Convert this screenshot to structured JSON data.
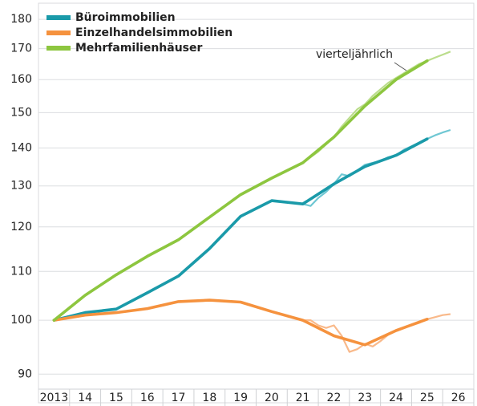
{
  "chart_data": {
    "type": "line",
    "log_scale": true,
    "grid": true,
    "legend": "upper left",
    "annotation": "vierteljährlich",
    "x": [
      2013,
      2014,
      2015,
      2016,
      2017,
      2018,
      2019,
      2020,
      2021,
      2022,
      2023,
      2024,
      2025
    ],
    "xlim": [
      2012.5,
      2026.5
    ],
    "xticks": [
      {
        "value": 2013,
        "label": "2013"
      },
      {
        "value": 2014,
        "label": "14"
      },
      {
        "value": 2015,
        "label": "15"
      },
      {
        "value": 2016,
        "label": "16"
      },
      {
        "value": 2017,
        "label": "17"
      },
      {
        "value": 2018,
        "label": "18"
      },
      {
        "value": 2019,
        "label": "19"
      },
      {
        "value": 2020,
        "label": "20"
      },
      {
        "value": 2021,
        "label": "21"
      },
      {
        "value": 2022,
        "label": "22"
      },
      {
        "value": 2023,
        "label": "23"
      },
      {
        "value": 2024,
        "label": "24"
      },
      {
        "value": 2025,
        "label": "25"
      },
      {
        "value": 2026,
        "label": "26"
      }
    ],
    "ylim": [
      87.4,
      184.6
    ],
    "yticks": [
      90,
      100,
      110,
      120,
      130,
      140,
      150,
      160,
      170,
      180
    ],
    "series": [
      {
        "name": "Büroimmobilien",
        "color": "#1a9aa9",
        "values": [
          100,
          101.5,
          102.2,
          105.5,
          109,
          115,
          122.5,
          126.3,
          125.5,
          130.5,
          135,
          138,
          142.5
        ]
      },
      {
        "name": "Einzelhandelsimmobilien",
        "color": "#f5923e",
        "values": [
          100,
          101,
          101.5,
          102.3,
          103.7,
          104,
          103.6,
          101.7,
          100,
          97,
          95.3,
          98,
          100.2
        ]
      },
      {
        "name": "Mehrfamilienhäuser",
        "color": "#8dc63f",
        "values": [
          100,
          105,
          109.3,
          113.3,
          117,
          122.3,
          127.8,
          132,
          136,
          143,
          152,
          160,
          166
        ]
      }
    ],
    "quarterly": [
      {
        "color": "#6fc7d3",
        "x": [
          2021,
          2021.25,
          2021.5,
          2021.75,
          2022,
          2022.25,
          2022.5,
          2022.75,
          2023,
          2023.25,
          2023.5,
          2023.75,
          2024,
          2024.25,
          2024.5,
          2024.75,
          2025,
          2025.25,
          2025.5,
          2025.75
        ],
        "values": [
          125.5,
          125,
          127,
          128.5,
          130.5,
          133,
          132.5,
          134,
          135.5,
          136,
          136.5,
          137.5,
          138,
          139.5,
          140.5,
          141.5,
          142.5,
          143.5,
          144.3,
          145
        ]
      },
      {
        "color": "#f9b98a",
        "x": [
          2021,
          2021.25,
          2021.5,
          2021.75,
          2022,
          2022.25,
          2022.5,
          2022.75,
          2023,
          2023.25,
          2023.5,
          2023.75,
          2024,
          2024.25,
          2024.5,
          2024.75,
          2025,
          2025.25,
          2025.5,
          2025.75
        ],
        "values": [
          100,
          100,
          99,
          98.5,
          99,
          97,
          94,
          94.5,
          95.5,
          95,
          96,
          97.2,
          98,
          98.5,
          99,
          99.5,
          100.2,
          100.6,
          101,
          101.2
        ]
      },
      {
        "color": "#bbdd8c",
        "x": [
          2021,
          2021.25,
          2021.5,
          2021.75,
          2022,
          2022.25,
          2022.5,
          2022.75,
          2023,
          2023.25,
          2023.5,
          2023.75,
          2024,
          2024.25,
          2024.5,
          2024.75,
          2025,
          2025.25,
          2025.5,
          2025.75
        ],
        "values": [
          136,
          137.5,
          139,
          141,
          143,
          146,
          148.5,
          151,
          152.5,
          155,
          157,
          159,
          160.5,
          162,
          163.5,
          165,
          166,
          167,
          168,
          169
        ]
      }
    ]
  }
}
